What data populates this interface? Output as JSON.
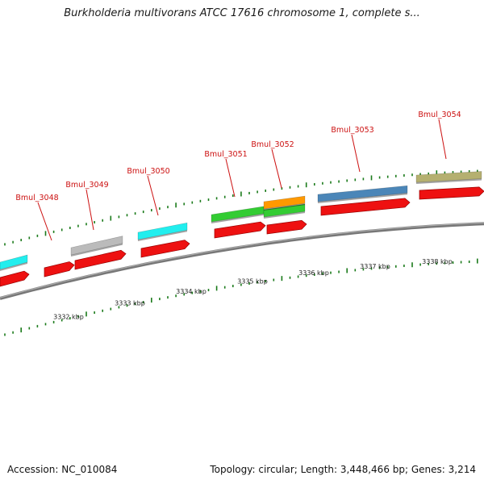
{
  "title": "Burkholderia multivorans ATCC 17616 chromosome 1, complete s...",
  "footer": {
    "accession": "Accession: NC_010084",
    "summary": "Topology: circular; Length: 3,448,466 bp; Genes: 3,214"
  },
  "genes": [
    {
      "name": "Bmul_3048"
    },
    {
      "name": "Bmul_3049"
    },
    {
      "name": "Bmul_3050"
    },
    {
      "name": "Bmul_3051"
    },
    {
      "name": "Bmul_3052"
    },
    {
      "name": "Bmul_3053"
    },
    {
      "name": "Bmul_3054"
    }
  ],
  "scale_ticks": [
    "3332 kbp",
    "3333 kbp",
    "3334 kbp",
    "3335 kbp",
    "3336 kbp",
    "3337 kbp",
    "3338 kbp"
  ],
  "colors": {
    "cds": "#ee1111",
    "cyan": "#22eeee",
    "gray": "#bbbbbb",
    "green": "#33cc33",
    "orange": "#ff9900",
    "blue": "#4b86b8",
    "olive": "#b5b070",
    "backbone": "#888888",
    "tick": "#1a7a1a",
    "label": "#cc1111"
  }
}
